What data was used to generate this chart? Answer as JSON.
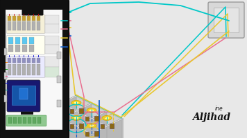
{
  "bg_color": "#e8e8e8",
  "phone_bg": "#111111",
  "phone_screen_bg": "#f8f8f8",
  "wall_face": "#d0d0d0",
  "wall_top": "#e4e4e4",
  "wall_side": "#b8b8b8",
  "wall_edge": "#999999",
  "light_yellow": "#f5d020",
  "light_inner": "#ffffa0",
  "switch_brown": "#8b6914",
  "panel_face": "#d4d4d4",
  "panel_inner": "#c0c0c0",
  "wire_cyan": "#00c8c8",
  "wire_pink": "#e87090",
  "wire_yellow": "#e8c830",
  "wire_blue": "#1060d0",
  "wire_teal": "#20b0a0"
}
